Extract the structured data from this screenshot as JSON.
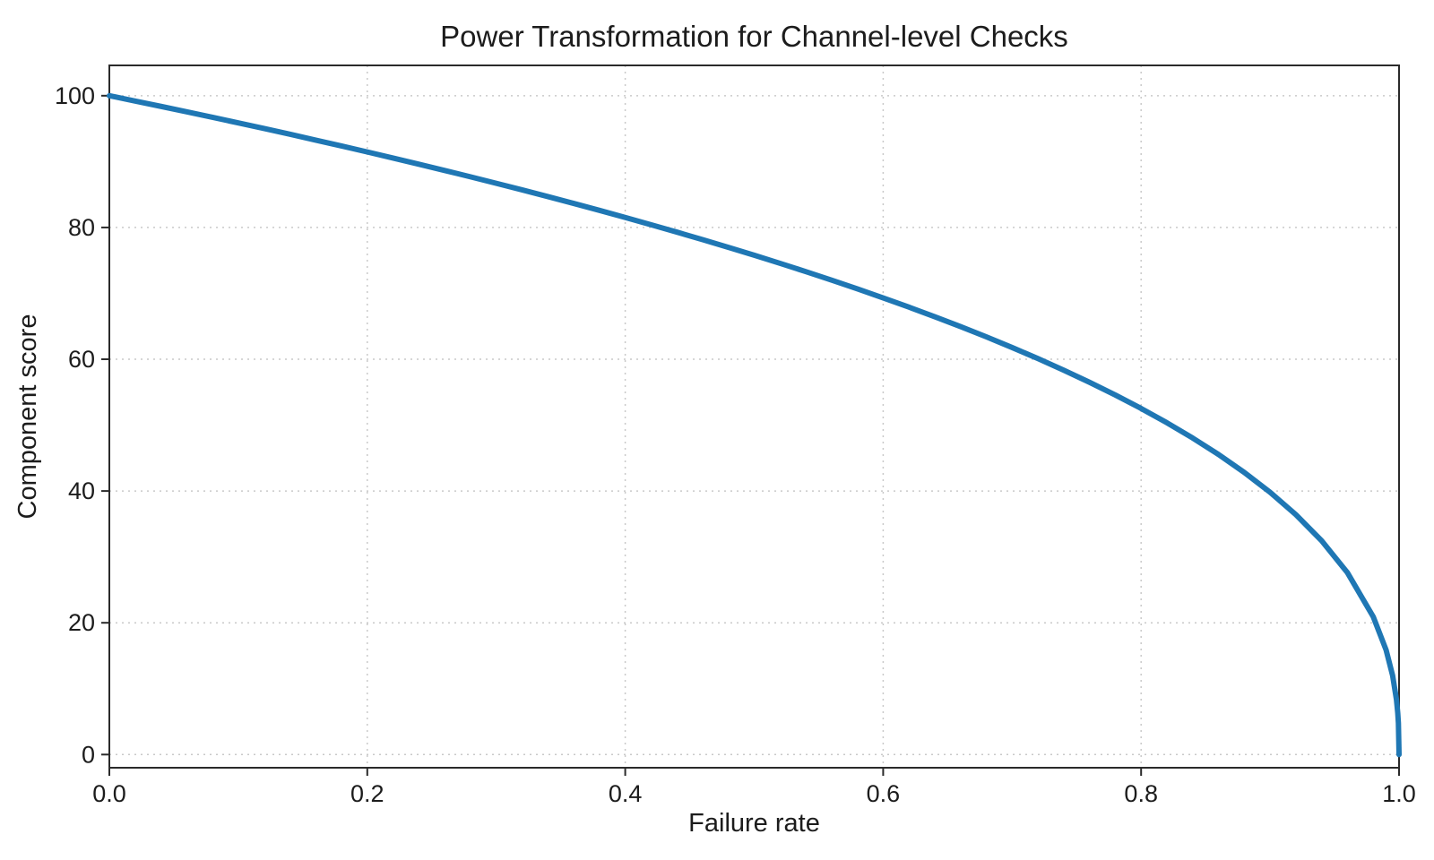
{
  "chart_data": {
    "type": "line",
    "title": "Power Transformation for Channel-level Checks",
    "xlabel": "Failure rate",
    "ylabel": "Component score",
    "xlim": [
      0,
      1
    ],
    "ylim": [
      -2.0,
      104.6
    ],
    "x_ticks": [
      0.0,
      0.2,
      0.4,
      0.6,
      0.8,
      1.0
    ],
    "x_tick_labels": [
      "0.0",
      "0.2",
      "0.4",
      "0.6",
      "0.8",
      "1.0"
    ],
    "y_ticks": [
      0,
      20,
      40,
      60,
      80,
      100
    ],
    "y_tick_labels": [
      "0",
      "20",
      "40",
      "60",
      "80",
      "100"
    ],
    "grid": true,
    "grid_style": "dotted",
    "legend": "none",
    "line_color": "#1f77b4",
    "grid_color": "#c9c9c9",
    "spine_color": "#2a2a2a",
    "background_color": "#ffffff",
    "series": [
      {
        "name": "component-score-curve",
        "x": [
          0.0,
          0.02,
          0.04,
          0.06,
          0.08,
          0.1,
          0.12,
          0.14,
          0.16,
          0.18,
          0.2,
          0.22,
          0.24,
          0.26,
          0.28,
          0.3,
          0.32,
          0.34,
          0.36,
          0.38,
          0.4,
          0.42,
          0.44,
          0.46,
          0.48,
          0.5,
          0.52,
          0.54,
          0.56,
          0.58,
          0.6,
          0.62,
          0.64,
          0.66,
          0.68,
          0.7,
          0.72,
          0.74,
          0.76,
          0.78,
          0.8,
          0.82,
          0.84,
          0.86,
          0.88,
          0.9,
          0.92,
          0.94,
          0.96,
          0.98,
          0.99,
          0.995,
          0.998,
          0.999,
          0.9995,
          1.0
        ],
        "y": [
          100.0,
          99.19,
          98.38,
          97.56,
          96.72,
          95.87,
          95.02,
          94.15,
          93.26,
          92.37,
          91.46,
          90.54,
          89.6,
          88.65,
          87.69,
          86.7,
          85.71,
          84.69,
          83.65,
          82.6,
          81.52,
          80.42,
          79.3,
          78.15,
          76.98,
          75.79,
          74.56,
          73.3,
          72.01,
          70.68,
          69.31,
          67.91,
          66.45,
          64.95,
          63.4,
          61.78,
          60.1,
          58.34,
          56.5,
          54.57,
          52.53,
          50.36,
          48.04,
          45.55,
          42.82,
          39.81,
          36.41,
          32.45,
          27.6,
          20.91,
          15.85,
          12.01,
          8.33,
          6.31,
          4.78,
          0.0
        ]
      }
    ]
  }
}
